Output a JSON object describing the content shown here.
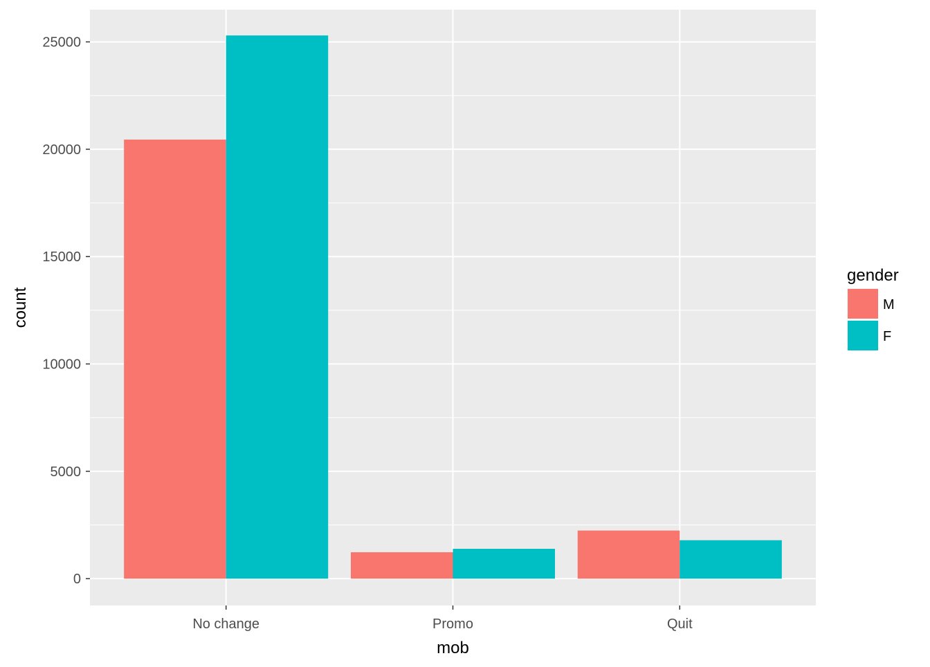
{
  "chart_data": {
    "type": "bar",
    "categories": [
      "No change",
      "Promo",
      "Quit"
    ],
    "series": [
      {
        "name": "M",
        "values": [
          20450,
          1230,
          2240
        ]
      },
      {
        "name": "F",
        "values": [
          25300,
          1390,
          1790
        ]
      }
    ],
    "xlabel": "mob",
    "ylabel": "count",
    "ylim": [
      -1250,
      26500
    ],
    "yticks": [
      0,
      5000,
      10000,
      15000,
      20000,
      25000
    ],
    "ytick_labels": [
      "0",
      "5000",
      "10000",
      "15000",
      "20000",
      "25000"
    ],
    "grid": true,
    "legend": {
      "title": "gender",
      "placement": "right"
    }
  },
  "colors": {
    "M": "#F8766D",
    "F": "#00BFC4",
    "panel_background": "#EBEBEB",
    "grid": "#FFFFFF"
  }
}
